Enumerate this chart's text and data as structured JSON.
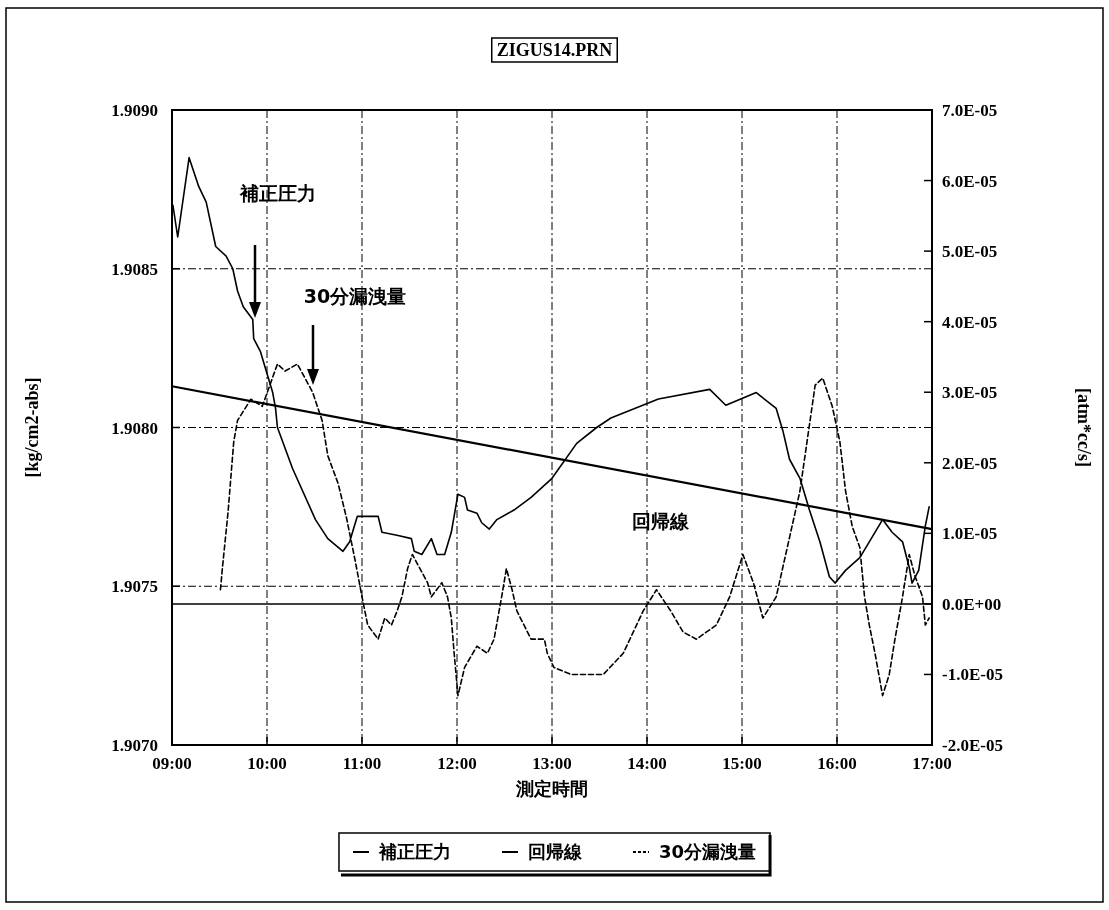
{
  "chart_data": {
    "type": "line",
    "title": "ZIGUS14.PRN",
    "xlabel": "測定時間",
    "ylabel": "[kg/cm2-abs]",
    "y2label": "[atm*cc/s]",
    "xlim": [
      9,
      17
    ],
    "xticks": [
      {
        "value": 9,
        "label": "09:00"
      },
      {
        "value": 10,
        "label": "10:00"
      },
      {
        "value": 11,
        "label": "11:00"
      },
      {
        "value": 12,
        "label": "12:00"
      },
      {
        "value": 13,
        "label": "13:00"
      },
      {
        "value": 14,
        "label": "14:00"
      },
      {
        "value": 15,
        "label": "15:00"
      },
      {
        "value": 16,
        "label": "16:00"
      },
      {
        "value": 17,
        "label": "17:00"
      }
    ],
    "ylim": [
      1.907,
      1.909
    ],
    "yticks": [
      {
        "value": 1.907,
        "label": "1.9070"
      },
      {
        "value": 1.9075,
        "label": "1.9075"
      },
      {
        "value": 1.908,
        "label": "1.9080"
      },
      {
        "value": 1.9085,
        "label": "1.9085"
      },
      {
        "value": 1.909,
        "label": "1.9090"
      }
    ],
    "y2lim": [
      -2e-05,
      7e-05
    ],
    "y2ticks": [
      {
        "value": -2e-05,
        "label": "-2.0E-05"
      },
      {
        "value": -1e-05,
        "label": "-1.0E-05"
      },
      {
        "value": 0,
        "label": "0.0E+00"
      },
      {
        "value": 1e-05,
        "label": "1.0E-05"
      },
      {
        "value": 2e-05,
        "label": "2.0E-05"
      },
      {
        "value": 3e-05,
        "label": "3.0E-05"
      },
      {
        "value": 4e-05,
        "label": "4.0E-05"
      },
      {
        "value": 5e-05,
        "label": "5.0E-05"
      },
      {
        "value": 6e-05,
        "label": "6.0E-05"
      },
      {
        "value": 7e-05,
        "label": "7.0E-05"
      }
    ],
    "grid": true,
    "legend": "bottom",
    "ref_lines": [
      {
        "axis": "y2",
        "value": 0,
        "color": "#000000",
        "line_style": "solid"
      }
    ],
    "annotations": [
      "補正圧力",
      "30分漏洩量",
      "回帰線"
    ],
    "series": [
      {
        "name": "補正圧力",
        "color": "#000000",
        "line_style": "solid",
        "x": [
          9.01,
          9.06,
          9.18,
          9.28,
          9.36,
          9.46,
          9.57,
          9.64,
          9.69,
          9.75,
          9.85,
          9.86,
          9.93,
          9.98,
          10.06,
          10.09,
          10.11,
          10.27,
          10.51,
          10.64,
          10.8,
          10.87,
          10.95,
          11.06,
          11.17,
          11.21,
          11.38,
          11.52,
          11.55,
          11.63,
          11.73,
          11.79,
          11.87,
          11.94,
          12.01,
          12.08,
          12.11,
          12.21,
          12.26,
          12.34,
          12.42,
          12.6,
          12.78,
          13.0,
          13.26,
          13.47,
          13.62,
          14.12,
          14.66,
          14.83,
          15.15,
          15.36,
          15.43,
          15.5,
          15.61,
          15.71,
          15.82,
          15.92,
          15.98,
          16.09,
          16.24,
          16.34,
          16.48,
          16.58,
          16.69,
          16.76,
          16.79,
          16.86,
          16.93,
          16.97
        ],
        "values": [
          1.9087,
          1.9086,
          1.90885,
          1.90876,
          1.90871,
          1.90857,
          1.90854,
          1.9085,
          1.90843,
          1.90838,
          1.90834,
          1.90828,
          1.90824,
          1.90819,
          1.90811,
          1.90806,
          1.908,
          1.90787,
          1.90771,
          1.90765,
          1.90761,
          1.90764,
          1.90772,
          1.90772,
          1.90772,
          1.90767,
          1.90766,
          1.90765,
          1.90761,
          1.9076,
          1.90765,
          1.9076,
          1.9076,
          1.90767,
          1.90779,
          1.90778,
          1.90774,
          1.90773,
          1.9077,
          1.90768,
          1.90771,
          1.90774,
          1.90778,
          1.90784,
          1.90795,
          1.908,
          1.90803,
          1.90809,
          1.90812,
          1.90807,
          1.90811,
          1.90806,
          1.90799,
          1.9079,
          1.90784,
          1.90774,
          1.90764,
          1.90753,
          1.90751,
          1.90755,
          1.90759,
          1.90764,
          1.90771,
          1.90767,
          1.90764,
          1.90756,
          1.90751,
          1.90755,
          1.90769,
          1.90775
        ]
      },
      {
        "name": "回帰線",
        "color": "#000000",
        "line_style": "solid",
        "x": [
          9,
          17
        ],
        "values": [
          1.90813,
          1.90768
        ]
      },
      {
        "name": "30分漏洩量",
        "axis": "y2",
        "color": "#000000",
        "line_style": "dashed",
        "x": [
          9.51,
          9.53,
          9.59,
          9.62,
          9.65,
          9.69,
          9.83,
          9.95,
          10.11,
          10.19,
          10.32,
          10.4,
          10.48,
          10.53,
          10.58,
          10.64,
          10.75,
          10.84,
          10.93,
          11.0,
          11.06,
          11.17,
          11.24,
          11.31,
          11.37,
          11.42,
          11.48,
          11.53,
          11.69,
          11.73,
          11.84,
          11.9,
          11.94,
          11.97,
          12.01,
          12.08,
          12.21,
          12.32,
          12.39,
          12.47,
          12.52,
          12.58,
          12.63,
          12.78,
          12.92,
          12.95,
          13.02,
          13.2,
          13.34,
          13.54,
          13.75,
          13.96,
          14.1,
          14.25,
          14.38,
          14.52,
          14.73,
          14.87,
          15.01,
          15.12,
          15.22,
          15.36,
          15.46,
          15.61,
          15.77,
          15.85,
          15.95,
          16.03,
          16.09,
          16.16,
          16.24,
          16.29,
          16.34,
          16.4,
          16.48,
          16.55,
          16.61,
          16.69,
          16.76,
          16.82,
          16.9,
          16.93,
          16.97
        ],
        "values": [
          2e-06,
          5e-06,
          1.3e-05,
          1.8e-05,
          2.3e-05,
          2.6e-05,
          2.9e-05,
          2.8e-05,
          3.4e-05,
          3.3e-05,
          3.4e-05,
          3.2e-05,
          3e-05,
          2.8e-05,
          2.6e-05,
          2.1e-05,
          1.7e-05,
          1.2e-05,
          6e-06,
          1e-06,
          -3e-06,
          -5e-06,
          -2e-06,
          -3e-06,
          -1e-06,
          1e-06,
          5e-06,
          7e-06,
          3e-06,
          1e-06,
          3e-06,
          1e-06,
          -2e-06,
          -7e-06,
          -1.3e-05,
          -9e-06,
          -6e-06,
          -7e-06,
          -5e-06,
          1e-06,
          5e-06,
          2e-06,
          -1e-06,
          -5e-06,
          -5e-06,
          -7e-06,
          -9e-06,
          -1e-05,
          -1e-05,
          -1e-05,
          -7e-06,
          -1e-06,
          2e-06,
          -1e-06,
          -4e-06,
          -5e-06,
          -3e-06,
          1e-06,
          7e-06,
          3e-06,
          -2e-06,
          1e-06,
          7e-06,
          1.6e-05,
          3.1e-05,
          3.2e-05,
          2.8e-05,
          2.3e-05,
          1.6e-05,
          1.1e-05,
          8e-06,
          1e-06,
          -3e-06,
          -7e-06,
          -1.3e-05,
          -1e-05,
          -5e-06,
          1e-06,
          7e-06,
          4e-06,
          1e-06,
          -3e-06,
          -2e-06
        ]
      }
    ]
  }
}
